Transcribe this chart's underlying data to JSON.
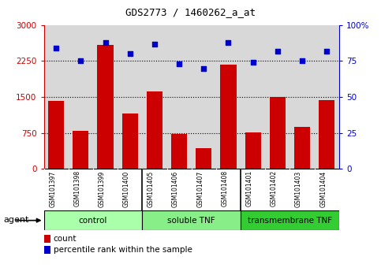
{
  "title": "GDS2773 / 1460262_a_at",
  "samples": [
    "GSM101397",
    "GSM101398",
    "GSM101399",
    "GSM101400",
    "GSM101405",
    "GSM101406",
    "GSM101407",
    "GSM101408",
    "GSM101401",
    "GSM101402",
    "GSM101403",
    "GSM101404"
  ],
  "counts": [
    1420,
    800,
    2590,
    1150,
    1620,
    730,
    430,
    2180,
    760,
    1500,
    870,
    1430
  ],
  "percentiles": [
    84,
    75,
    88,
    80,
    87,
    73,
    70,
    88,
    74,
    82,
    75,
    82
  ],
  "groups": [
    {
      "label": "control",
      "start": 0,
      "end": 4,
      "color": "#aaffaa"
    },
    {
      "label": "soluble TNF",
      "start": 4,
      "end": 8,
      "color": "#88ee88"
    },
    {
      "label": "transmembrane TNF",
      "start": 8,
      "end": 12,
      "color": "#33cc33"
    }
  ],
  "bar_color": "#cc0000",
  "dot_color": "#0000cc",
  "left_ylim": [
    0,
    3000
  ],
  "right_ylim": [
    0,
    100
  ],
  "left_yticks": [
    0,
    750,
    1500,
    2250,
    3000
  ],
  "right_yticks": [
    0,
    25,
    50,
    75,
    100
  ],
  "left_yticklabels": [
    "0",
    "750",
    "1500",
    "2250",
    "3000"
  ],
  "right_yticklabels": [
    "0",
    "25",
    "50",
    "75",
    "100%"
  ],
  "grid_values": [
    750,
    1500,
    2250
  ],
  "background_color": "#ffffff",
  "bar_area_bg": "#d8d8d8",
  "agent_label": "agent",
  "legend_count_label": "count",
  "legend_pct_label": "percentile rank within the sample"
}
